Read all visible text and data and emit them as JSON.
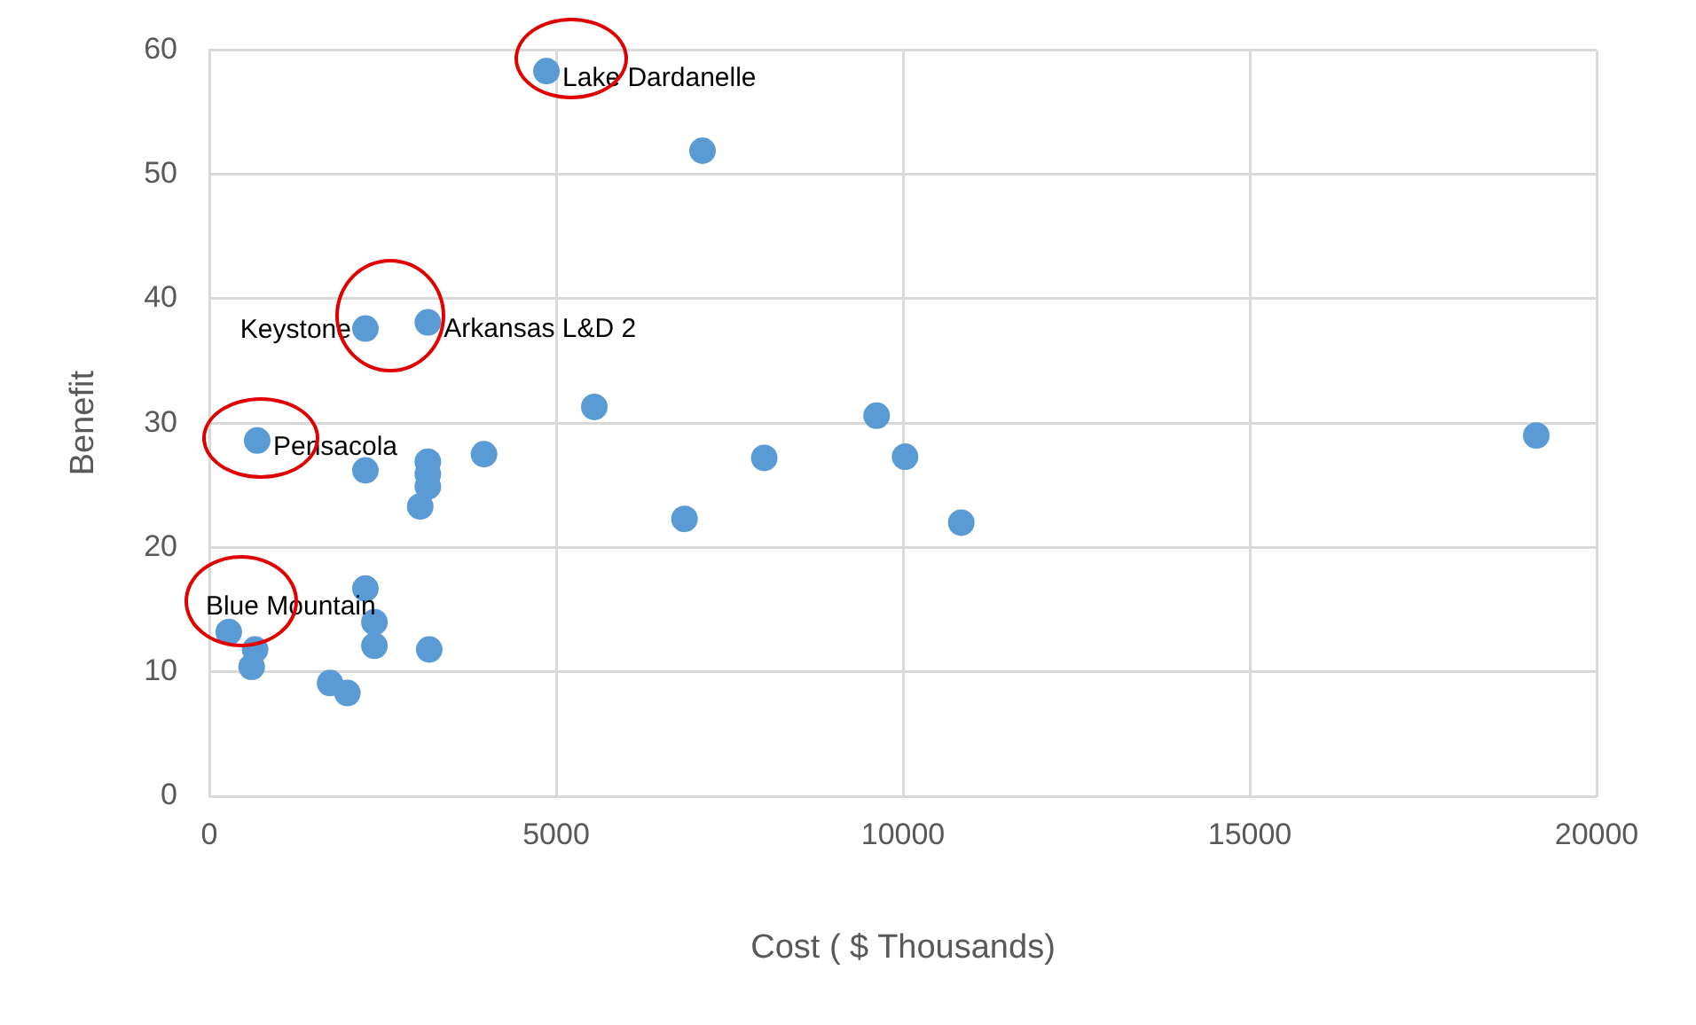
{
  "chart_data": {
    "type": "scatter",
    "xlabel": "Cost ( $ Thousands)",
    "ylabel": "Benefit",
    "x": [
      4860,
      7110,
      2250,
      3150,
      5550,
      9620,
      19130,
      690,
      2250,
      3150,
      3150,
      3150,
      3960,
      8000,
      10030,
      3040,
      6850,
      10840,
      2250,
      2380,
      280,
      660,
      2380,
      3170,
      610,
      1740,
      1990
    ],
    "values": [
      58.3,
      51.9,
      37.6,
      38.1,
      31.3,
      30.6,
      29.0,
      28.6,
      26.2,
      26.9,
      25.9,
      24.9,
      27.5,
      27.2,
      27.3,
      23.3,
      22.3,
      22.0,
      16.7,
      14.0,
      13.2,
      11.8,
      12.1,
      11.8,
      10.4,
      9.1,
      8.3
    ],
    "color": "#5b9bd5",
    "marker": "circle",
    "grid": true,
    "legend": false,
    "xlim": [
      0,
      20000
    ],
    "xticks": [
      0,
      5000,
      10000,
      15000,
      20000
    ],
    "ylim": [
      0,
      60
    ],
    "yticks": [
      0,
      10,
      20,
      30,
      40,
      50,
      60
    ],
    "annotations": [
      {
        "text": "Lake Dardanelle",
        "x": 4860,
        "y": 58.3
      },
      {
        "text": "Keystone",
        "x": 2250,
        "y": 37.6
      },
      {
        "text": "Arkansas L&D 2",
        "x": 3150,
        "y": 38.1
      },
      {
        "text": "Pensacola",
        "x": 690,
        "y": 28.6
      },
      {
        "text": "Blue Mountain",
        "x": 280,
        "y": 13.2
      }
    ]
  }
}
